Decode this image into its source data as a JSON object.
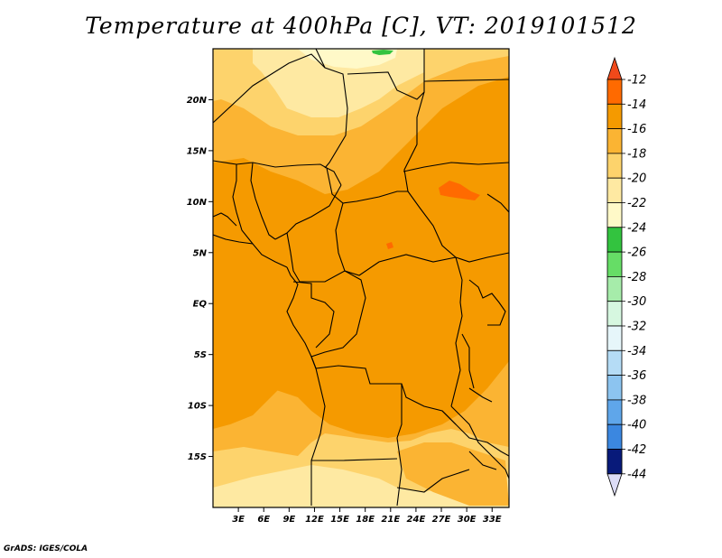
{
  "title": "Temperature at 400hPa [C], VT: 2019101512",
  "credit": "GrADS: IGES/COLA",
  "map": {
    "lon_range": [
      0,
      35
    ],
    "lat_range": [
      -20,
      25
    ],
    "lat_ticks": [
      {
        "value": 20,
        "label": "20N"
      },
      {
        "value": 15,
        "label": "15N"
      },
      {
        "value": 10,
        "label": "10N"
      },
      {
        "value": 5,
        "label": "5N"
      },
      {
        "value": 0,
        "label": "EQ"
      },
      {
        "value": -5,
        "label": "5S"
      },
      {
        "value": -10,
        "label": "10S"
      },
      {
        "value": -15,
        "label": "15S"
      }
    ],
    "lon_ticks": [
      {
        "value": 3,
        "label": "3E"
      },
      {
        "value": 6,
        "label": "6E"
      },
      {
        "value": 9,
        "label": "9E"
      },
      {
        "value": 12,
        "label": "12E"
      },
      {
        "value": 15,
        "label": "15E"
      },
      {
        "value": 18,
        "label": "18E"
      },
      {
        "value": 21,
        "label": "21E"
      },
      {
        "value": 24,
        "label": "24E"
      },
      {
        "value": 27,
        "label": "27E"
      },
      {
        "value": 30,
        "label": "30E"
      },
      {
        "value": 33,
        "label": "33E"
      }
    ]
  },
  "colorbar": {
    "levels": [
      {
        "label": "-12",
        "color": "#ff6a00"
      },
      {
        "label": "-14",
        "color": "#f59a00"
      },
      {
        "label": "-16",
        "color": "#fbb433"
      },
      {
        "label": "-18",
        "color": "#fdd36c"
      },
      {
        "label": "-20",
        "color": "#fee9a2"
      },
      {
        "label": "-22",
        "color": "#fff9c8"
      },
      {
        "label": "-24",
        "color": "#33c33f"
      },
      {
        "label": "-26",
        "color": "#66dd66"
      },
      {
        "label": "-28",
        "color": "#a6ecaa"
      },
      {
        "label": "-30",
        "color": "#d6f7e0"
      },
      {
        "label": "-32",
        "color": "#e6f6fa"
      },
      {
        "label": "-34",
        "color": "#b5dcf6"
      },
      {
        "label": "-36",
        "color": "#8cc4f0"
      },
      {
        "label": "-38",
        "color": "#5fa6ea"
      },
      {
        "label": "-40",
        "color": "#3b87e0"
      },
      {
        "label": "-42",
        "color": "#1f5fcc"
      },
      {
        "label": "-44",
        "color": "#0e3fa8"
      }
    ],
    "top_color": "#f0491a",
    "bottom_color": "#dcdcf6",
    "extra_swatch": "#081a7a"
  }
}
